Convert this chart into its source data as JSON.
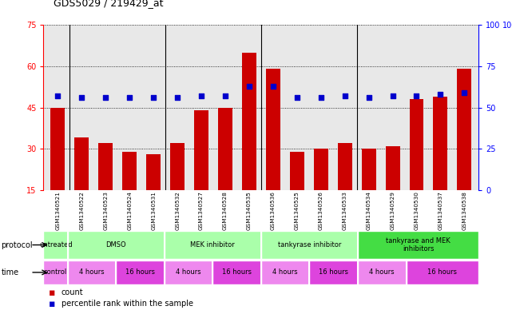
{
  "title": "GDS5029 / 219429_at",
  "samples": [
    "GSM1340521",
    "GSM1340522",
    "GSM1340523",
    "GSM1340524",
    "GSM1340531",
    "GSM1340532",
    "GSM1340527",
    "GSM1340528",
    "GSM1340535",
    "GSM1340536",
    "GSM1340525",
    "GSM1340526",
    "GSM1340533",
    "GSM1340534",
    "GSM1340529",
    "GSM1340530",
    "GSM1340537",
    "GSM1340538"
  ],
  "counts": [
    45,
    34,
    32,
    29,
    28,
    32,
    44,
    45,
    65,
    59,
    29,
    30,
    32,
    30,
    31,
    48,
    49,
    59
  ],
  "percentiles_pct": [
    57,
    56,
    56,
    56,
    56,
    56,
    57,
    57,
    63,
    63,
    56,
    56,
    57,
    56,
    57,
    57,
    58,
    59
  ],
  "ylim_left": [
    15,
    75
  ],
  "ylim_right": [
    0,
    100
  ],
  "yticks_left": [
    15,
    30,
    45,
    60,
    75
  ],
  "yticks_right": [
    0,
    25,
    50,
    75,
    100
  ],
  "bar_color": "#cc0000",
  "dot_color": "#0000cc",
  "bg_color": "#e8e8e8",
  "proto_light": "#aaffaa",
  "proto_dark": "#44dd44",
  "time_light": "#ee88ee",
  "time_dark": "#dd44dd",
  "proto_groups": [
    {
      "label": "untreated",
      "start": 0,
      "end": 1,
      "dark": false
    },
    {
      "label": "DMSO",
      "start": 1,
      "end": 5,
      "dark": false
    },
    {
      "label": "MEK inhibitor",
      "start": 5,
      "end": 9,
      "dark": false
    },
    {
      "label": "tankyrase inhibitor",
      "start": 9,
      "end": 13,
      "dark": false
    },
    {
      "label": "tankyrase and MEK\ninhibitors",
      "start": 13,
      "end": 18,
      "dark": true
    }
  ],
  "time_groups": [
    {
      "label": "control",
      "start": 0,
      "end": 1,
      "dark": false
    },
    {
      "label": "4 hours",
      "start": 1,
      "end": 3,
      "dark": false
    },
    {
      "label": "16 hours",
      "start": 3,
      "end": 5,
      "dark": true
    },
    {
      "label": "4 hours",
      "start": 5,
      "end": 7,
      "dark": false
    },
    {
      "label": "16 hours",
      "start": 7,
      "end": 9,
      "dark": true
    },
    {
      "label": "4 hours",
      "start": 9,
      "end": 11,
      "dark": false
    },
    {
      "label": "16 hours",
      "start": 11,
      "end": 13,
      "dark": true
    },
    {
      "label": "4 hours",
      "start": 13,
      "end": 15,
      "dark": false
    },
    {
      "label": "16 hours",
      "start": 15,
      "end": 18,
      "dark": true
    }
  ],
  "group_boundaries": [
    1,
    5,
    9,
    13
  ],
  "n_samples": 18
}
